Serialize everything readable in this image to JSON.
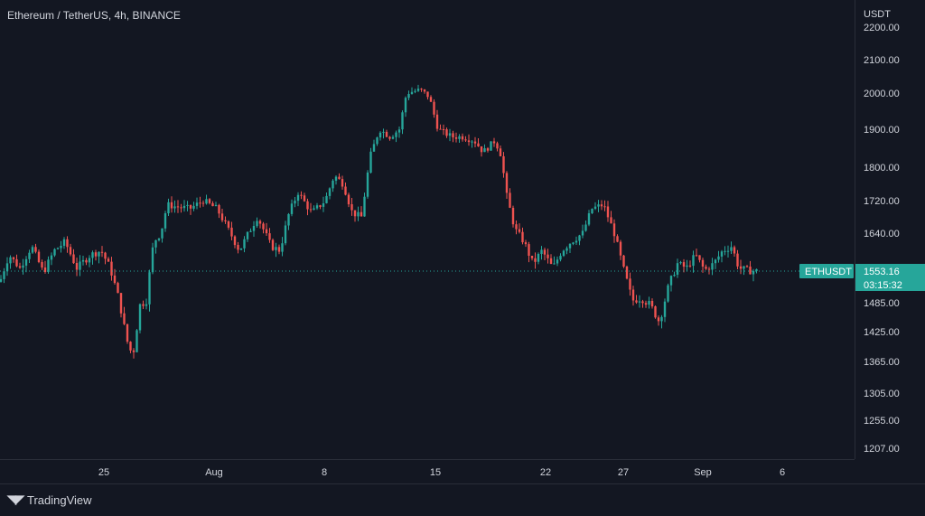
{
  "window": {
    "title": "Ethereum / TetherUS, 4h, BINANCE",
    "brand": "TradingView"
  },
  "colors": {
    "background": "#131722",
    "up": "#26a69a",
    "down": "#ef5350",
    "text": "#d1d4dc",
    "badge": "#26a69a"
  },
  "icons": {
    "brand": "tradingview-logo-icon"
  },
  "chart_data": {
    "type": "candlestick",
    "symbol": "ETHUSDT",
    "price_axis_label": "USDT",
    "y_ticks": [
      1207,
      1255,
      1305,
      1365,
      1425,
      1485,
      1553.16,
      1640,
      1720,
      1800,
      1900,
      2000,
      2100,
      2200
    ],
    "y_tick_labels": [
      "1207.00",
      "1255.00",
      "1305.00",
      "1365.00",
      "1425.00",
      "1485.00",
      "1553.16",
      "1640.00",
      "1720.00",
      "1800.00",
      "1900.00",
      "2000.00",
      "2100.00",
      "2200.00"
    ],
    "x_tick_labels": [
      "25",
      "Aug",
      "8",
      "15",
      "22",
      "27",
      "Sep",
      "6"
    ],
    "last_price": 1553.16,
    "last_price_label": "1553.16",
    "countdown": "03:15:32",
    "close_path": [
      [
        0,
        1530
      ],
      [
        10,
        1590
      ],
      [
        22,
        1560
      ],
      [
        35,
        1610
      ],
      [
        48,
        1550
      ],
      [
        60,
        1600
      ],
      [
        72,
        1620
      ],
      [
        85,
        1560
      ],
      [
        100,
        1590
      ],
      [
        112,
        1600
      ],
      [
        122,
        1560
      ],
      [
        132,
        1490
      ],
      [
        140,
        1410
      ],
      [
        147,
        1375
      ],
      [
        155,
        1480
      ],
      [
        162,
        1490
      ],
      [
        170,
        1620
      ],
      [
        178,
        1640
      ],
      [
        185,
        1710
      ],
      [
        195,
        1705
      ],
      [
        210,
        1700
      ],
      [
        225,
        1720
      ],
      [
        240,
        1700
      ],
      [
        255,
        1640
      ],
      [
        265,
        1600
      ],
      [
        275,
        1640
      ],
      [
        285,
        1680
      ],
      [
        300,
        1610
      ],
      [
        310,
        1600
      ],
      [
        320,
        1690
      ],
      [
        330,
        1740
      ],
      [
        345,
        1690
      ],
      [
        360,
        1720
      ],
      [
        370,
        1780
      ],
      [
        380,
        1760
      ],
      [
        390,
        1690
      ],
      [
        400,
        1680
      ],
      [
        410,
        1830
      ],
      [
        420,
        1900
      ],
      [
        432,
        1880
      ],
      [
        442,
        1900
      ],
      [
        450,
        2000
      ],
      [
        465,
        2010
      ],
      [
        475,
        1990
      ],
      [
        485,
        1900
      ],
      [
        500,
        1880
      ],
      [
        512,
        1880
      ],
      [
        525,
        1870
      ],
      [
        535,
        1840
      ],
      [
        548,
        1870
      ],
      [
        555,
        1830
      ],
      [
        560,
        1740
      ],
      [
        570,
        1650
      ],
      [
        580,
        1620
      ],
      [
        590,
        1570
      ],
      [
        600,
        1600
      ],
      [
        612,
        1560
      ],
      [
        622,
        1600
      ],
      [
        632,
        1620
      ],
      [
        645,
        1640
      ],
      [
        655,
        1700
      ],
      [
        668,
        1710
      ],
      [
        680,
        1640
      ],
      [
        690,
        1560
      ],
      [
        700,
        1490
      ],
      [
        710,
        1495
      ],
      [
        720,
        1480
      ],
      [
        730,
        1445
      ],
      [
        740,
        1520
      ],
      [
        750,
        1570
      ],
      [
        760,
        1560
      ],
      [
        770,
        1590
      ],
      [
        780,
        1555
      ],
      [
        790,
        1570
      ],
      [
        800,
        1600
      ],
      [
        810,
        1610
      ],
      [
        818,
        1560
      ],
      [
        828,
        1555
      ],
      [
        838,
        1553
      ]
    ]
  }
}
